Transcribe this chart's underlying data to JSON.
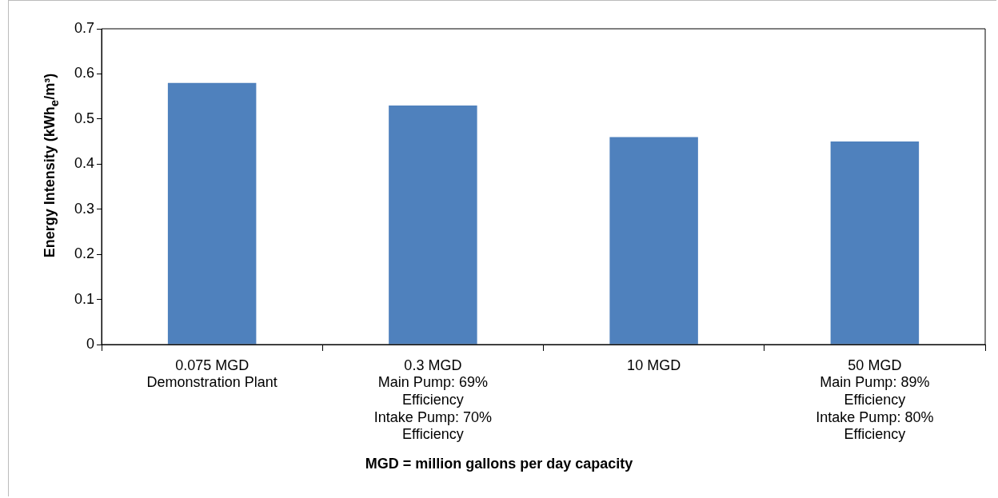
{
  "chart_data": {
    "type": "bar",
    "categories": [
      "0.075 MGD\nDemonstration Plant",
      "0.3 MGD\nMain Pump: 69%\nEfficiency\nIntake Pump: 70%\nEfficiency",
      "10 MGD",
      "50 MGD\nMain Pump: 89%\nEfficiency\nIntake Pump: 80%\nEfficiency"
    ],
    "values": [
      0.58,
      0.53,
      0.46,
      0.45
    ],
    "color": "#4f81bd",
    "ylim": [
      0,
      0.7
    ],
    "yticks": [
      0,
      0.1,
      0.2,
      0.3,
      0.4,
      0.5,
      0.6,
      0.7
    ],
    "xlabel": "MGD = million gallons per day capacity",
    "ylabel": "Energy Intensity (kWh$_{e}$/m³)",
    "grid": false,
    "legend": false
  }
}
